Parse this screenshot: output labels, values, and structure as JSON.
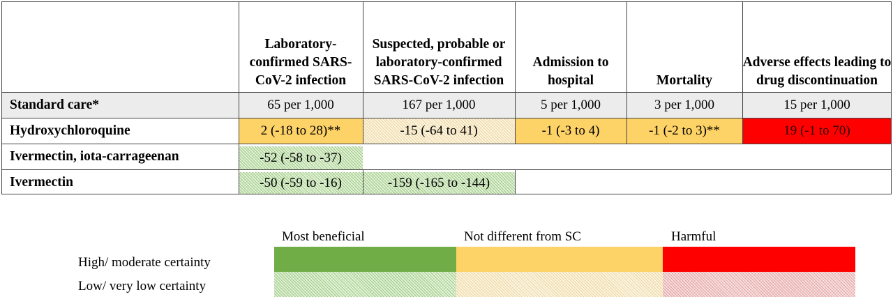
{
  "table": {
    "columns": [
      "",
      "Laboratory-confirmed SARS-CoV-2 infection",
      "Suspected, probable or laboratory-confirmed SARS-CoV-2 infection",
      "Admission to hospital",
      "Mortality",
      "Adverse effects leading to drug discontinuation"
    ],
    "rows": [
      {
        "label": "Standard care*",
        "cells": [
          "65 per 1,000",
          "167 per 1,000",
          "5 per 1,000",
          "3 per 1,000",
          "15 per 1,000"
        ]
      },
      {
        "label": "Hydroxychloroquine",
        "cells": [
          "2 (-18 to 28)**",
          "-15 (-64 to 41)",
          "-1 (-3 to 4)",
          "-1 (-2 to 3)**",
          "19 (-1 to 70)"
        ]
      },
      {
        "label": "Ivermectin, iota-carrageenan",
        "cells": [
          "-52 (-58 to -37)",
          "",
          "",
          "",
          ""
        ]
      },
      {
        "label": "Ivermectin",
        "cells": [
          "-50 (-59 to -16)",
          "-159 (-165 to -144)",
          "",
          "",
          ""
        ]
      }
    ]
  },
  "legend": {
    "categories": [
      "Most beneficial",
      "Not different from SC",
      "Harmful"
    ],
    "certainty_levels": [
      "High/ moderate certainty",
      "Low/ very low certainty"
    ]
  },
  "colors": {
    "beneficial": "#70ad47",
    "not_different": "#fdd266",
    "harmful": "#ff0000",
    "standard_care_row": "#ececec"
  }
}
